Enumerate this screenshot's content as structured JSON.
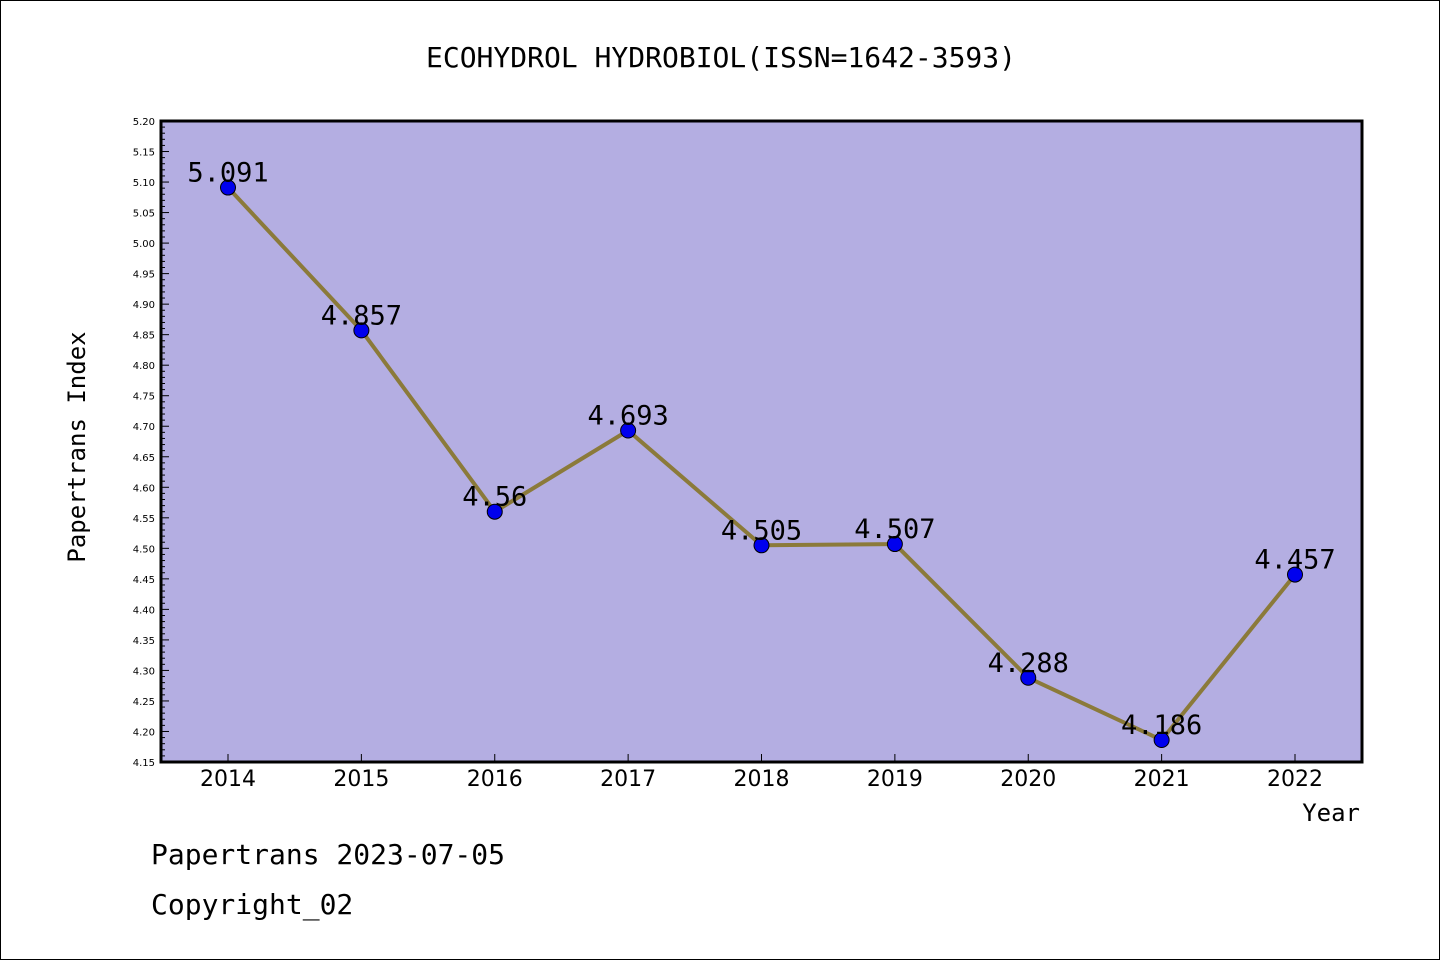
{
  "chart_data": {
    "type": "line",
    "title": "ECOHYDROL HYDROBIOL(ISSN=1642-3593)",
    "xlabel": "Year",
    "ylabel": "Papertrans Index",
    "categories": [
      "2014",
      "2015",
      "2016",
      "2017",
      "2018",
      "2019",
      "2020",
      "2021",
      "2022"
    ],
    "series": [
      {
        "values": [
          5.091,
          4.857,
          4.56,
          4.693,
          4.505,
          4.507,
          4.288,
          4.186,
          4.457
        ],
        "labels": [
          "5.091",
          "4.857",
          "4.56",
          "4.693",
          "4.505",
          "4.507",
          "4.288",
          "4.186",
          "4.457"
        ]
      }
    ],
    "ylim": [
      4.15,
      5.2
    ],
    "ytick_step": 0.05,
    "ytick_labels": [
      "4.15",
      "4.20",
      "4.25",
      "4.30",
      "4.35",
      "4.40",
      "4.45",
      "4.50",
      "4.55",
      "4.60",
      "4.65",
      "4.70",
      "4.75",
      "4.80",
      "4.85",
      "4.90",
      "4.95",
      "5.00",
      "5.05",
      "5.10",
      "5.15",
      "5.20"
    ],
    "grid": false,
    "colors": {
      "plot_background": "#b4aee2",
      "line": "#8b7a3a",
      "marker": "#0000ee"
    }
  },
  "footer": {
    "line1": "Papertrans 2023-07-05",
    "line2": "Copyright_02"
  }
}
